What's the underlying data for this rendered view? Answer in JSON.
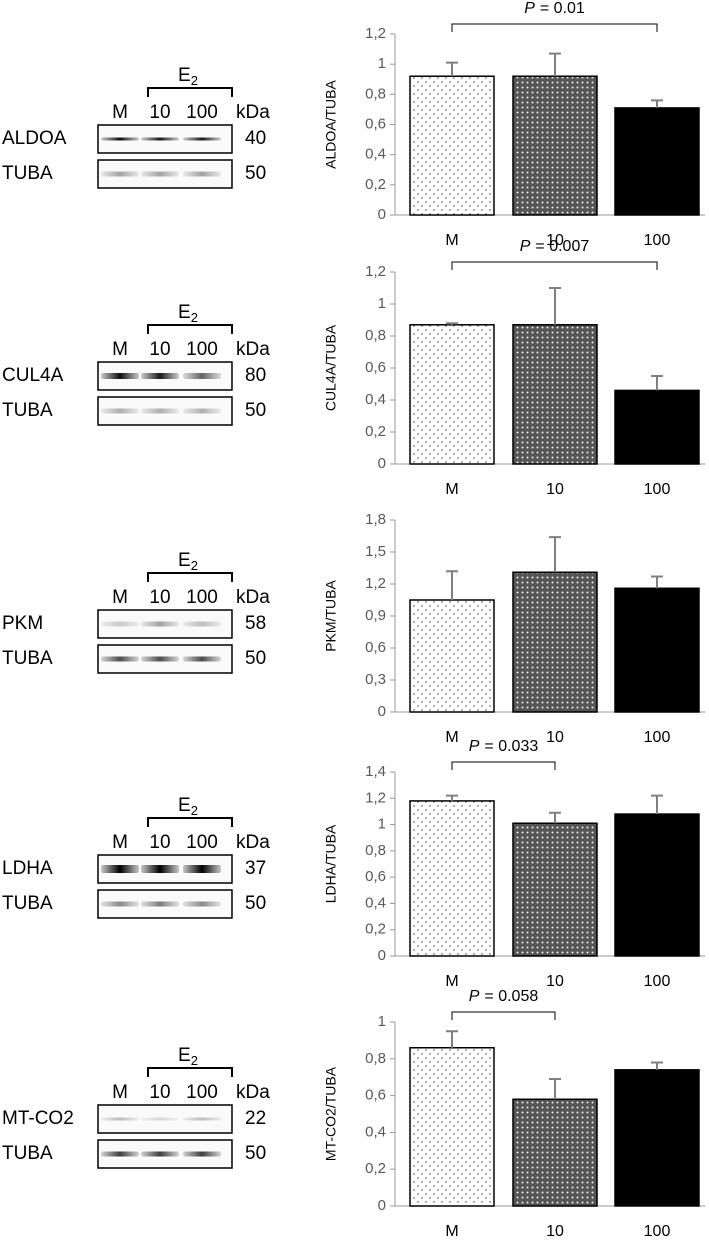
{
  "chart_data": [
    {
      "type": "bar",
      "ylabel": "ALDOA/TUBA",
      "categories": [
        "M",
        "10",
        "100"
      ],
      "values": [
        0.92,
        0.92,
        0.71
      ],
      "errors": [
        0.09,
        0.15,
        0.05
      ],
      "fills": [
        "dotted",
        "crosshatch",
        "solid"
      ],
      "ylim": [
        0,
        1.2
      ],
      "yticks": [
        0,
        {
          "value": 0.2,
          "label": "0,2"
        },
        {
          "value": 0.4,
          "label": "0,4"
        },
        {
          "value": 0.6,
          "label": "0,6"
        },
        {
          "value": 0.8,
          "label": "0,8"
        },
        1,
        {
          "value": 1.2,
          "label": "1,2"
        }
      ],
      "annotation": {
        "label": "P",
        "text": "= 0.01",
        "between": [
          0,
          2
        ]
      }
    },
    {
      "type": "bar",
      "ylabel": "CUL4A/TUBA",
      "categories": [
        "M",
        "10",
        "100"
      ],
      "values": [
        0.87,
        0.87,
        0.46
      ],
      "errors": [
        0.01,
        0.23,
        0.09
      ],
      "fills": [
        "dotted",
        "crosshatch",
        "solid"
      ],
      "ylim": [
        0,
        1.2
      ],
      "yticks": [
        0,
        {
          "value": 0.2,
          "label": "0,2"
        },
        {
          "value": 0.4,
          "label": "0,4"
        },
        {
          "value": 0.6,
          "label": "0,6"
        },
        {
          "value": 0.8,
          "label": "0,8"
        },
        1,
        {
          "value": 1.2,
          "label": "1,2"
        }
      ],
      "annotation": {
        "label": "P",
        "text": "= 0.007",
        "between": [
          0,
          2
        ]
      }
    },
    {
      "type": "bar",
      "ylabel": "PKM/TUBA",
      "categories": [
        "M",
        "10",
        "100"
      ],
      "values": [
        1.05,
        1.31,
        1.16
      ],
      "errors": [
        0.27,
        0.33,
        0.11
      ],
      "fills": [
        "dotted",
        "crosshatch",
        "solid"
      ],
      "ylim": [
        0,
        1.8
      ],
      "yticks": [
        0,
        {
          "value": 0.3,
          "label": "0,3"
        },
        {
          "value": 0.6,
          "label": "0,6"
        },
        {
          "value": 0.9,
          "label": "0,9"
        },
        {
          "value": 1.2,
          "label": "1,2"
        },
        {
          "value": 1.5,
          "label": "1,5"
        },
        {
          "value": 1.8,
          "label": "1,8"
        }
      ]
    },
    {
      "type": "bar",
      "ylabel": "LDHA/TUBA",
      "categories": [
        "M",
        "10",
        "100"
      ],
      "values": [
        1.18,
        1.01,
        1.08
      ],
      "errors": [
        0.04,
        0.08,
        0.14
      ],
      "fills": [
        "dotted",
        "crosshatch",
        "solid"
      ],
      "ylim": [
        0,
        1.4
      ],
      "yticks": [
        0,
        {
          "value": 0.2,
          "label": "0,2"
        },
        {
          "value": 0.4,
          "label": "0,4"
        },
        {
          "value": 0.6,
          "label": "0,6"
        },
        {
          "value": 0.8,
          "label": "0,8"
        },
        1,
        {
          "value": 1.2,
          "label": "1,2"
        },
        {
          "value": 1.4,
          "label": "1,4"
        }
      ],
      "annotation": {
        "label": "P",
        "text": "= 0.033",
        "between": [
          0,
          1
        ]
      }
    },
    {
      "type": "bar",
      "ylabel": "MT-CO2/TUBA",
      "categories": [
        "M",
        "10",
        "100"
      ],
      "values": [
        0.86,
        0.58,
        0.74
      ],
      "errors": [
        0.09,
        0.11,
        0.04
      ],
      "fills": [
        "dotted",
        "crosshatch",
        "solid"
      ],
      "ylim": [
        0,
        1
      ],
      "yticks": [
        0,
        {
          "value": 0.2,
          "label": "0,2"
        },
        {
          "value": 0.4,
          "label": "0,4"
        },
        {
          "value": 0.6,
          "label": "0,6"
        },
        {
          "value": 0.8,
          "label": "0,8"
        },
        1
      ],
      "annotation": {
        "label": "P",
        "text": "= 0.058",
        "between": [
          0,
          1
        ]
      }
    }
  ],
  "blots": [
    {
      "treatment": "E",
      "subscript": "2",
      "lanes": [
        "M",
        "10",
        "100"
      ],
      "unit": "kDa",
      "proteins": [
        {
          "name": "ALDOA",
          "kda": "40"
        },
        {
          "name": "TUBA",
          "kda": "50"
        }
      ]
    },
    {
      "treatment": "E",
      "subscript": "2",
      "lanes": [
        "M",
        "10",
        "100"
      ],
      "unit": "kDa",
      "proteins": [
        {
          "name": "CUL4A",
          "kda": "80"
        },
        {
          "name": "TUBA",
          "kda": "50"
        }
      ]
    },
    {
      "treatment": "E",
      "subscript": "2",
      "lanes": [
        "M",
        "10",
        "100"
      ],
      "unit": "kDa",
      "proteins": [
        {
          "name": "PKM",
          "kda": "58"
        },
        {
          "name": "TUBA",
          "kda": "50"
        }
      ]
    },
    {
      "treatment": "E",
      "subscript": "2",
      "lanes": [
        "M",
        "10",
        "100"
      ],
      "unit": "kDa",
      "proteins": [
        {
          "name": "LDHA",
          "kda": "37"
        },
        {
          "name": "TUBA",
          "kda": "50"
        }
      ]
    },
    {
      "treatment": "E",
      "subscript": "2",
      "lanes": [
        "M",
        "10",
        "100"
      ],
      "unit": "kDa",
      "proteins": [
        {
          "name": "MT-CO2",
          "kda": "22"
        },
        {
          "name": "TUBA",
          "kda": "50"
        }
      ]
    }
  ]
}
